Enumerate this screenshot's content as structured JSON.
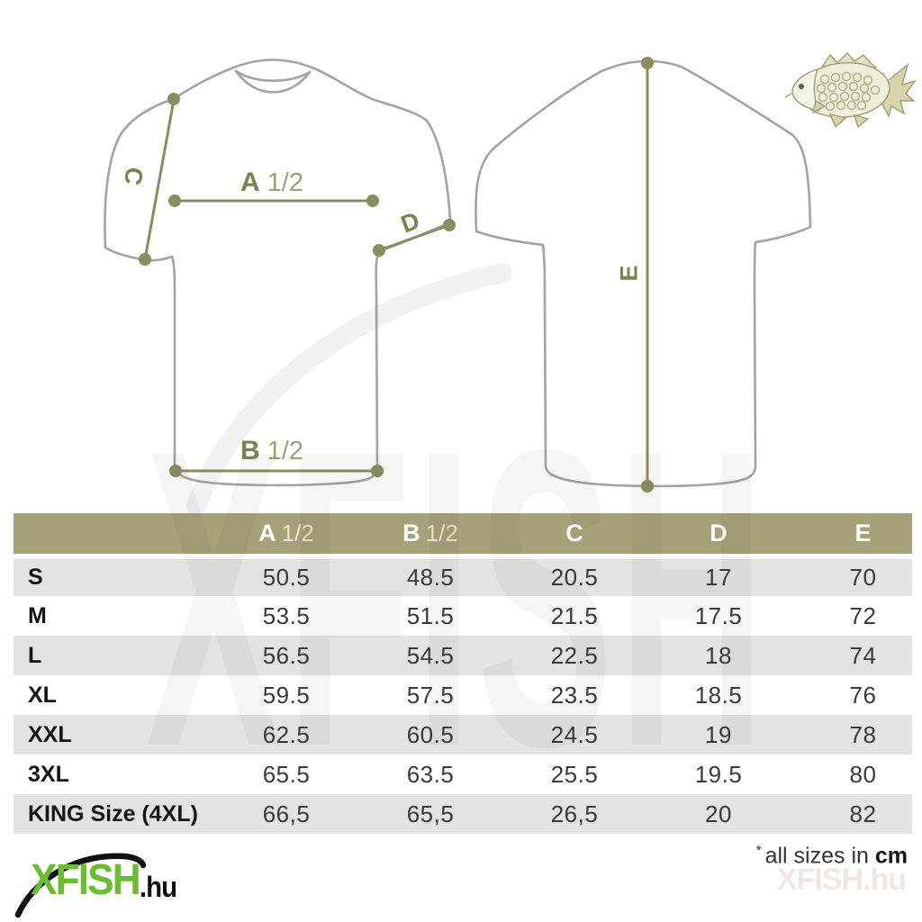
{
  "diagram": {
    "front_view": "t-shirt front outline with chest, hem, shoulder and sleeve measurement lines",
    "back_view": "t-shirt back outline with vertical length measurement line",
    "measurement_labels": {
      "a_letter": "A",
      "a_frac": "1/2",
      "b_letter": "B",
      "b_frac": "1/2",
      "c": "C",
      "d": "D",
      "e": "E"
    }
  },
  "icons": {
    "fish": "carp-fish-illustration"
  },
  "size_table": {
    "columns": [
      {
        "letter": "A",
        "frac": "1/2"
      },
      {
        "letter": "B",
        "frac": "1/2"
      },
      {
        "letter": "C",
        "frac": ""
      },
      {
        "letter": "D",
        "frac": ""
      },
      {
        "letter": "E",
        "frac": ""
      }
    ],
    "rows": [
      {
        "label": "S",
        "values": [
          "50.5",
          "48.5",
          "20.5",
          "17",
          "70"
        ]
      },
      {
        "label": "M",
        "values": [
          "53.5",
          "51.5",
          "21.5",
          "17.5",
          "72"
        ]
      },
      {
        "label": "L",
        "values": [
          "56.5",
          "54.5",
          "22.5",
          "18",
          "74"
        ]
      },
      {
        "label": "XL",
        "values": [
          "59.5",
          "57.5",
          "23.5",
          "18.5",
          "76"
        ]
      },
      {
        "label": "XXL",
        "values": [
          "62.5",
          "60.5",
          "24.5",
          "19",
          "78"
        ]
      },
      {
        "label": "3XL",
        "values": [
          "65.5",
          "63.5",
          "25.5",
          "19.5",
          "80"
        ]
      },
      {
        "label": "KING Size (4XL)",
        "values": [
          "66,5",
          "65,5",
          "26,5",
          "20",
          "82"
        ]
      }
    ]
  },
  "footnote": {
    "asterisk": "*",
    "text": "all sizes in ",
    "unit": "cm"
  },
  "logo": {
    "name": "XFISH",
    "tld": ".hu"
  },
  "watermark": {
    "big_text": "XFISH",
    "corner_text": "XFISH.hu"
  },
  "colors": {
    "header_olive": "#a5a178",
    "measurement_olive": "#8b8c5f",
    "row_grey": "#e3e3e3",
    "logo_green": "#6abc30",
    "shirt_outline": "#a3a3a3"
  }
}
